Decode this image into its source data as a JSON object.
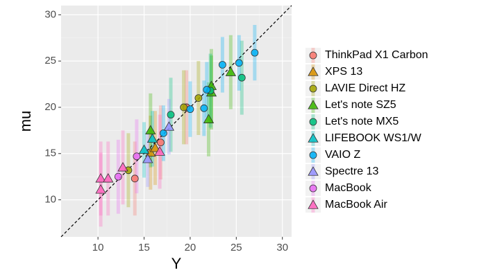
{
  "chart_data": {
    "type": "scatter",
    "x_label": "Y",
    "y_label": "mu",
    "xlim": [
      6,
      31
    ],
    "ylim": [
      6,
      31
    ],
    "xticks": [
      10,
      15,
      20,
      25,
      30
    ],
    "yticks": [
      10,
      15,
      20,
      25,
      30
    ],
    "grid": true,
    "diagonal": true,
    "legend": "right",
    "series": [
      {
        "name": "ThinkPad X1 Carbon",
        "color": "#F8766D",
        "shape": "circle",
        "x": [
          14.0,
          16.8,
          19.6
        ],
        "values": [
          12.3,
          16.2,
          20.0
        ],
        "error": [
          4,
          4,
          4
        ]
      },
      {
        "name": "XPS 13",
        "color": "#D89000",
        "shape": "triangle",
        "x": [
          15.7,
          16.2
        ],
        "values": [
          15.1,
          15.6
        ],
        "error": [
          4,
          4
        ]
      },
      {
        "name": "LAVIE Direct HZ",
        "color": "#A3A500",
        "shape": "circle",
        "x": [
          13.3,
          19.3,
          20.9
        ],
        "values": [
          13.2,
          20.0,
          21.0
        ],
        "error": [
          4,
          4,
          4
        ]
      },
      {
        "name": "Let's note SZ5",
        "color": "#39B600",
        "shape": "triangle",
        "x": [
          15.7,
          22.0,
          22.3,
          22.3,
          24.4
        ],
        "values": [
          17.5,
          18.7,
          21.6,
          22.3,
          23.8
        ],
        "error": [
          4,
          4,
          4,
          4,
          4
        ]
      },
      {
        "name": "Let's note MX5",
        "color": "#00BF7D",
        "shape": "circle",
        "x": [
          17.9,
          22.2,
          25.6
        ],
        "values": [
          19.2,
          21.8,
          23.2
        ],
        "error": [
          4,
          4,
          4
        ]
      },
      {
        "name": "LIFEBOOK WS1/W",
        "color": "#00BFC4",
        "shape": "triangle",
        "x": [
          15.0,
          15.9
        ],
        "values": [
          15.4,
          16.6
        ],
        "error": [
          3,
          3
        ]
      },
      {
        "name": "VAIO Z",
        "color": "#00B0F6",
        "shape": "circle",
        "x": [
          17.1,
          20.0,
          21.5,
          21.8,
          23.5,
          25.3,
          27.0
        ],
        "values": [
          17.2,
          19.8,
          19.9,
          21.9,
          24.6,
          24.8,
          25.9
        ],
        "error": [
          3,
          3,
          3,
          3,
          3,
          3,
          3
        ]
      },
      {
        "name": "Spectre 13",
        "color": "#9590FF",
        "shape": "triangle",
        "x": [
          15.4,
          17.7
        ],
        "values": [
          14.4,
          17.9
        ],
        "error": [
          3,
          3
        ]
      },
      {
        "name": "MacBook",
        "color": "#E76BF3",
        "shape": "circle",
        "x": [
          12.2,
          14.2
        ],
        "values": [
          12.5,
          14.7
        ],
        "error": [
          4,
          4
        ]
      },
      {
        "name": "MacBook Air",
        "color": "#FF62BC",
        "shape": "triangle",
        "x": [
          10.3,
          10.3,
          11.1,
          12.7,
          16.7
        ],
        "values": [
          11.1,
          12.3,
          12.3,
          13.5,
          15.2
        ],
        "error": [
          4,
          4,
          4,
          4,
          4
        ]
      }
    ]
  }
}
